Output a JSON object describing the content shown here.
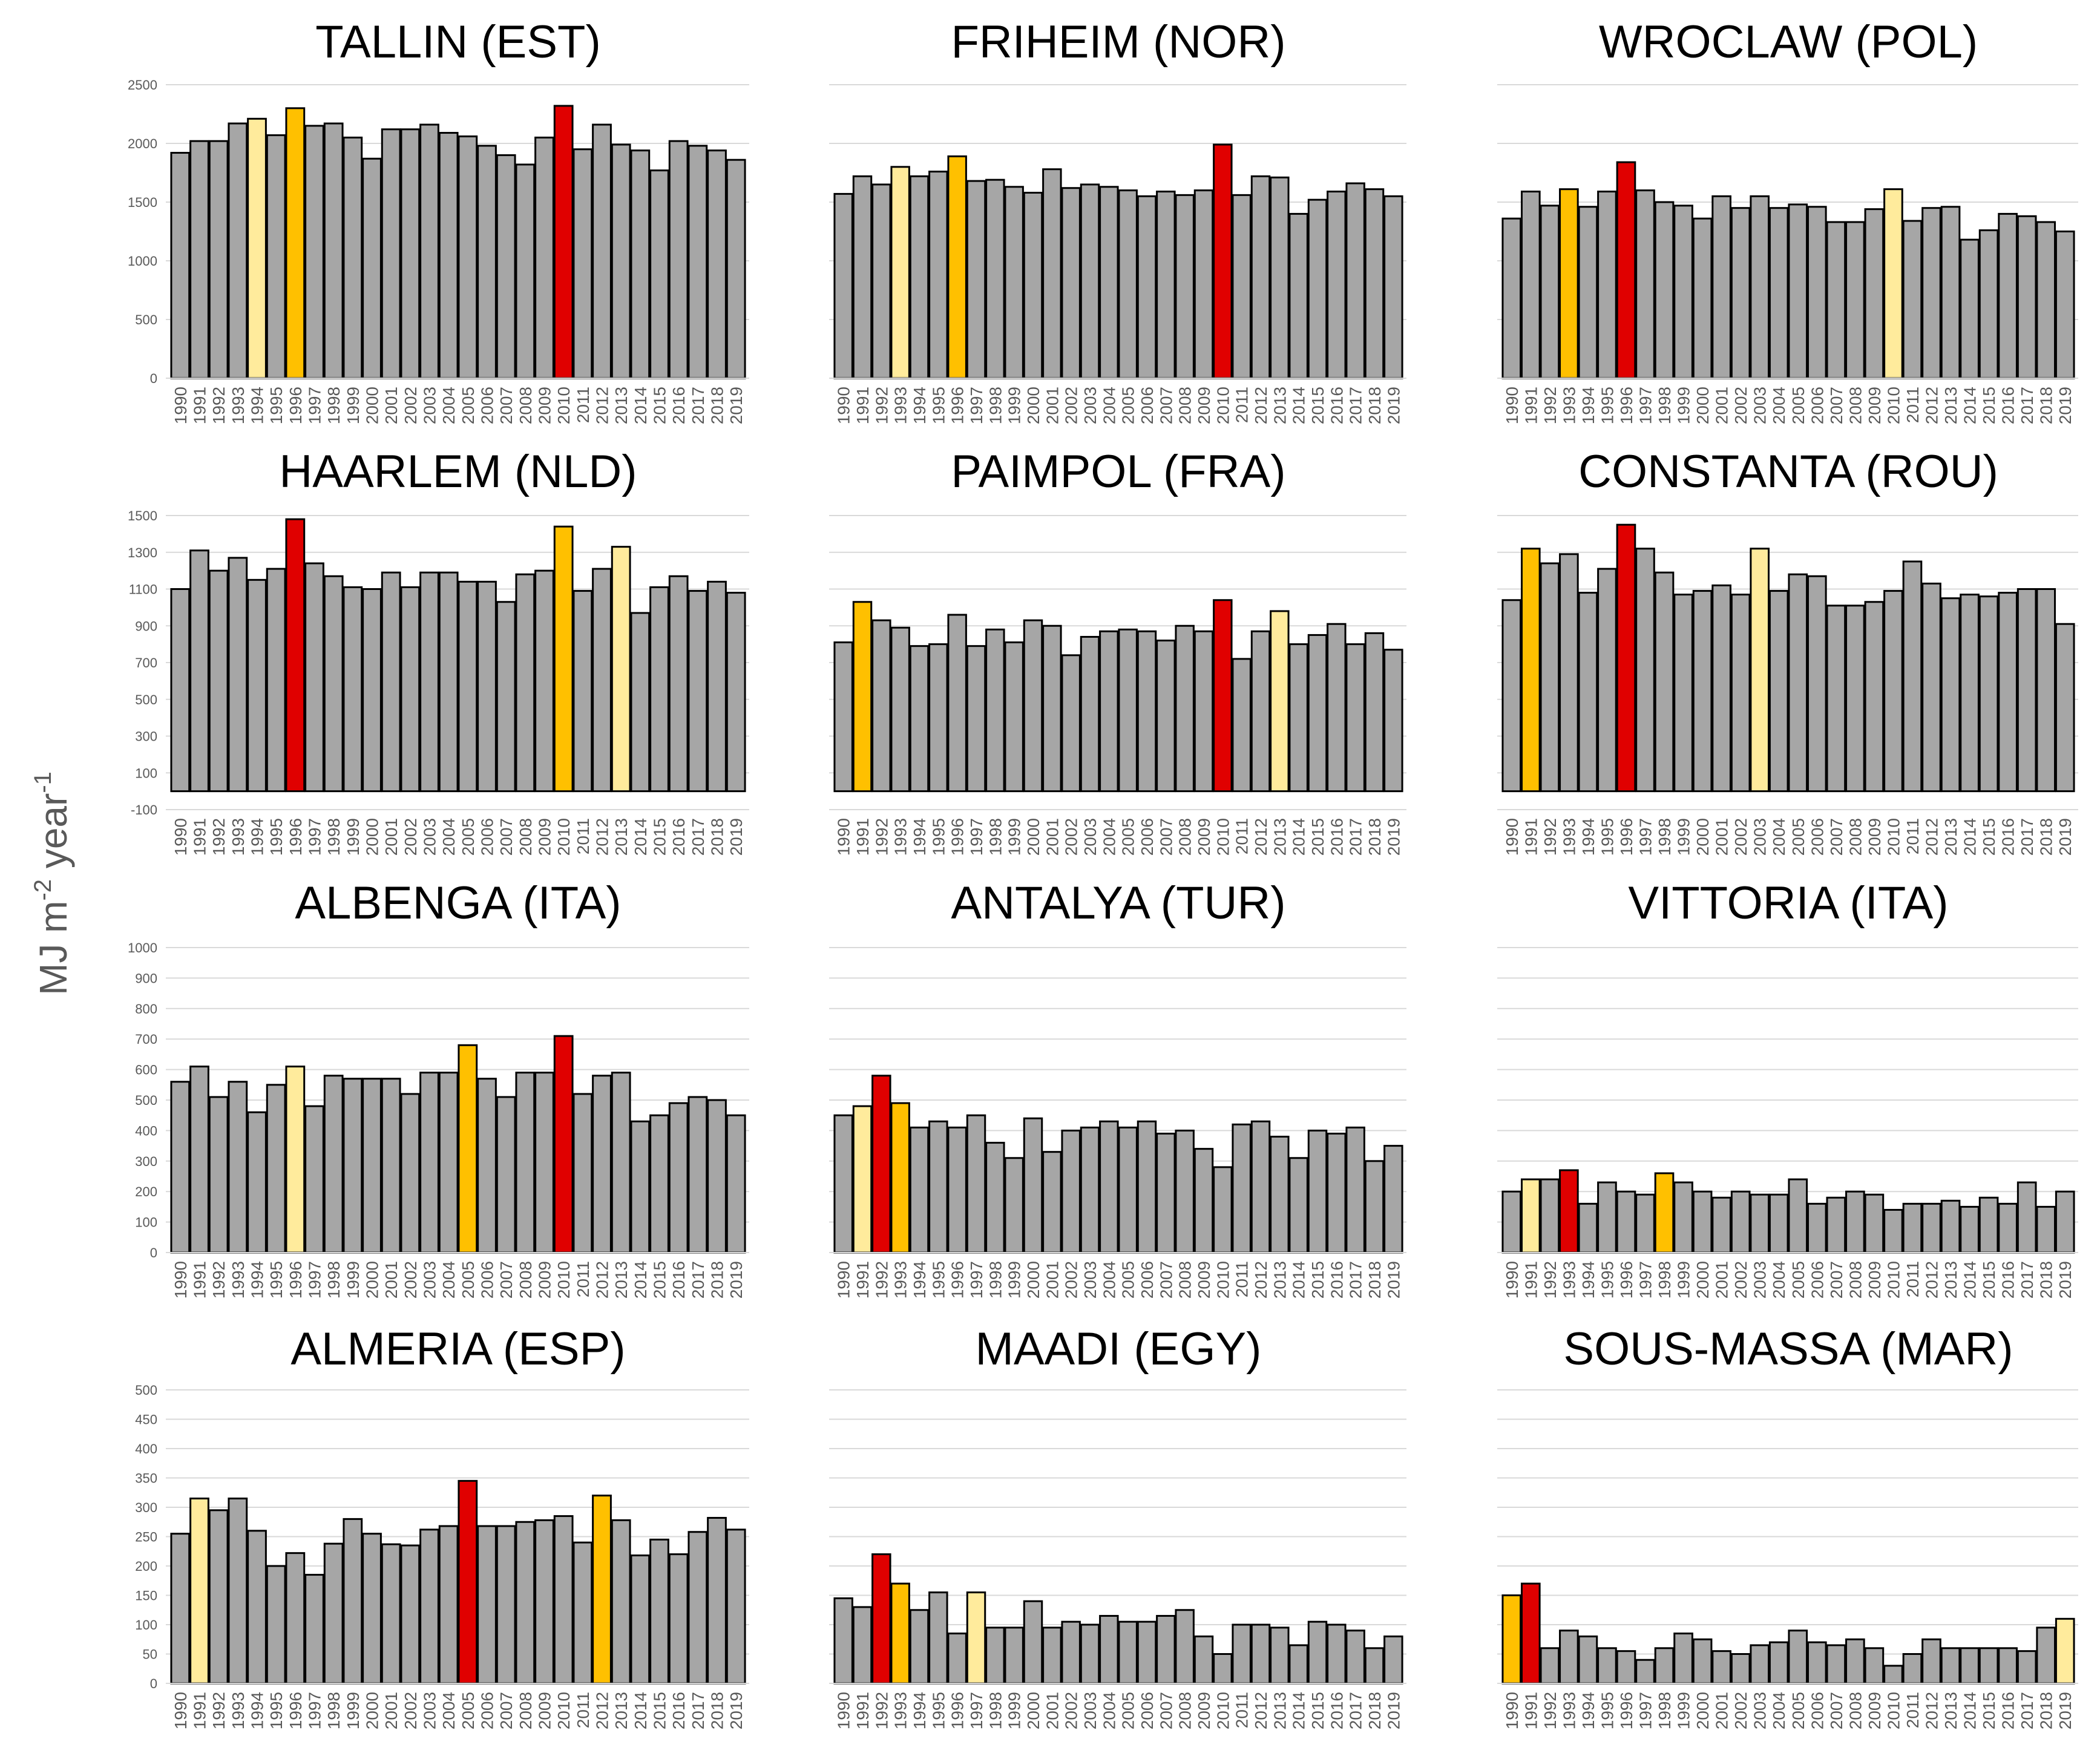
{
  "y_axis_title": "MJ m-2 year-1",
  "y_axis_title_parts": {
    "main": "MJ m",
    "exp1": "-2",
    "mid": " year",
    "exp2": "-1"
  },
  "colors": {
    "default": "#a6a6a6",
    "highest": "#e00000",
    "second": "#ffc000",
    "third": "#ffeb9c",
    "edge": "#000000",
    "grid": "#d9d9d9"
  },
  "chart_data": [
    {
      "type": "bar",
      "title": "TALLIN (EST)",
      "categories": [
        "1990",
        "1991",
        "1992",
        "1993",
        "1994",
        "1995",
        "1996",
        "1997",
        "1998",
        "1999",
        "2000",
        "2001",
        "2002",
        "2003",
        "2004",
        "2005",
        "2006",
        "2007",
        "2008",
        "2009",
        "2010",
        "2011",
        "2012",
        "2013",
        "2014",
        "2015",
        "2016",
        "2017",
        "2018",
        "2019"
      ],
      "values": [
        1920,
        2020,
        2020,
        2170,
        2210,
        2070,
        2300,
        2150,
        2170,
        2050,
        1870,
        2120,
        2120,
        2160,
        2090,
        2060,
        1980,
        1900,
        1820,
        2050,
        2320,
        1950,
        2160,
        1990,
        1940,
        1770,
        2020,
        1980,
        1940,
        1860
      ],
      "highlights": {
        "6": "second",
        "4": "third",
        "20": "highest"
      },
      "yticks": [
        "0",
        "500",
        "1000",
        "1500",
        "2000",
        "2500"
      ],
      "ylim": [
        0,
        2500
      ],
      "show_yticks": true
    },
    {
      "type": "bar",
      "title": "FRIHEIM (NOR)",
      "categories": [
        "1990",
        "1991",
        "1992",
        "1993",
        "1994",
        "1995",
        "1996",
        "1997",
        "1998",
        "1999",
        "2000",
        "2001",
        "2002",
        "2003",
        "2004",
        "2005",
        "2006",
        "2007",
        "2008",
        "2009",
        "2010",
        "2011",
        "2012",
        "2013",
        "2014",
        "2015",
        "2016",
        "2017",
        "2018",
        "2019"
      ],
      "values": [
        1570,
        1720,
        1650,
        1800,
        1720,
        1760,
        1890,
        1680,
        1690,
        1630,
        1580,
        1780,
        1620,
        1650,
        1630,
        1600,
        1550,
        1590,
        1560,
        1600,
        1990,
        1560,
        1720,
        1710,
        1400,
        1520,
        1590,
        1660,
        1610,
        1550
      ],
      "highlights": {
        "20": "highest",
        "6": "second",
        "3": "third"
      },
      "ylim": [
        0,
        2500
      ],
      "show_yticks": false
    },
    {
      "type": "bar",
      "title": "WROCLAW (POL)",
      "categories": [
        "1990",
        "1991",
        "1992",
        "1993",
        "1994",
        "1995",
        "1996",
        "1997",
        "1998",
        "1999",
        "2000",
        "2001",
        "2002",
        "2003",
        "2004",
        "2005",
        "2006",
        "2007",
        "2008",
        "2009",
        "2010",
        "2011",
        "2012",
        "2013",
        "2014",
        "2015",
        "2016",
        "2017",
        "2018",
        "2019"
      ],
      "values": [
        1360,
        1590,
        1470,
        1610,
        1460,
        1590,
        1840,
        1600,
        1500,
        1470,
        1360,
        1550,
        1450,
        1550,
        1450,
        1480,
        1460,
        1330,
        1330,
        1440,
        1610,
        1340,
        1450,
        1460,
        1180,
        1260,
        1400,
        1380,
        1330,
        1250
      ],
      "highlights": {
        "6": "highest",
        "3": "second",
        "20": "third"
      },
      "ylim": [
        0,
        2500
      ],
      "show_yticks": false
    },
    {
      "type": "bar",
      "title": "HAARLEM (NLD)",
      "categories": [
        "1990",
        "1991",
        "1992",
        "1993",
        "1994",
        "1995",
        "1996",
        "1997",
        "1998",
        "1999",
        "2000",
        "2001",
        "2002",
        "2003",
        "2004",
        "2005",
        "2006",
        "2007",
        "2008",
        "2009",
        "2010",
        "2011",
        "2012",
        "2013",
        "2014",
        "2015",
        "2016",
        "2017",
        "2018",
        "2019"
      ],
      "values": [
        1100,
        1310,
        1200,
        1270,
        1150,
        1210,
        1480,
        1240,
        1170,
        1110,
        1100,
        1190,
        1110,
        1190,
        1190,
        1140,
        1140,
        1030,
        1180,
        1200,
        1440,
        1090,
        1210,
        1330,
        970,
        1110,
        1170,
        1090,
        1140,
        1080
      ],
      "highlights": {
        "6": "highest",
        "20": "second",
        "23": "third"
      },
      "yticks": [
        "-100",
        "100",
        "300",
        "500",
        "700",
        "900",
        "1100",
        "1300",
        "1500"
      ],
      "ylim": [
        -100,
        1500
      ],
      "show_yticks": true
    },
    {
      "type": "bar",
      "title": "PAIMPOL (FRA)",
      "categories": [
        "1990",
        "1991",
        "1992",
        "1993",
        "1994",
        "1995",
        "1996",
        "1997",
        "1998",
        "1999",
        "2000",
        "2001",
        "2002",
        "2003",
        "2004",
        "2005",
        "2006",
        "2007",
        "2008",
        "2009",
        "2010",
        "2011",
        "2012",
        "2013",
        "2014",
        "2015",
        "2016",
        "2017",
        "2018",
        "2019"
      ],
      "values": [
        810,
        1030,
        930,
        890,
        790,
        800,
        960,
        790,
        880,
        810,
        930,
        900,
        740,
        840,
        870,
        880,
        870,
        820,
        900,
        870,
        1040,
        720,
        870,
        980,
        800,
        850,
        910,
        800,
        860,
        770
      ],
      "highlights": {
        "20": "highest",
        "1": "second",
        "23": "third"
      },
      "ylim": [
        -100,
        1500
      ],
      "show_yticks": false
    },
    {
      "type": "bar",
      "title": "CONSTANTA (ROU)",
      "categories": [
        "1990",
        "1991",
        "1992",
        "1993",
        "1994",
        "1995",
        "1996",
        "1997",
        "1998",
        "1999",
        "2000",
        "2001",
        "2002",
        "2003",
        "2004",
        "2005",
        "2006",
        "2007",
        "2008",
        "2009",
        "2010",
        "2011",
        "2012",
        "2013",
        "2014",
        "2015",
        "2016",
        "2017",
        "2018",
        "2019"
      ],
      "values": [
        1040,
        1320,
        1240,
        1290,
        1080,
        1210,
        1450,
        1320,
        1190,
        1070,
        1090,
        1120,
        1070,
        1320,
        1090,
        1180,
        1170,
        1010,
        1010,
        1030,
        1090,
        1250,
        1130,
        1050,
        1070,
        1060,
        1080,
        1100,
        1100,
        910
      ],
      "highlights": {
        "6": "highest",
        "1": "second",
        "13": "third"
      },
      "ylim": [
        -100,
        1500
      ],
      "show_yticks": false
    },
    {
      "type": "bar",
      "title": "ALBENGA (ITA)",
      "categories": [
        "1990",
        "1991",
        "1992",
        "1993",
        "1994",
        "1995",
        "1996",
        "1997",
        "1998",
        "1999",
        "2000",
        "2001",
        "2002",
        "2003",
        "2004",
        "2005",
        "2006",
        "2007",
        "2008",
        "2009",
        "2010",
        "2011",
        "2012",
        "2013",
        "2014",
        "2015",
        "2016",
        "2017",
        "2018",
        "2019"
      ],
      "values": [
        560,
        610,
        510,
        560,
        460,
        550,
        610,
        480,
        580,
        570,
        570,
        570,
        520,
        590,
        590,
        680,
        570,
        510,
        590,
        590,
        710,
        520,
        580,
        590,
        430,
        450,
        490,
        510,
        500,
        450
      ],
      "highlights": {
        "20": "highest",
        "15": "second",
        "6": "third"
      },
      "yticks": [
        "0",
        "100",
        "200",
        "300",
        "400",
        "500",
        "600",
        "700",
        "800",
        "900",
        "1000"
      ],
      "ylim": [
        0,
        1000
      ],
      "show_yticks": true
    },
    {
      "type": "bar",
      "title": "ANTALYA (TUR)",
      "categories": [
        "1990",
        "1991",
        "1992",
        "1993",
        "1994",
        "1995",
        "1996",
        "1997",
        "1998",
        "1999",
        "2000",
        "2001",
        "2002",
        "2003",
        "2004",
        "2005",
        "2006",
        "2007",
        "2008",
        "2009",
        "2010",
        "2011",
        "2012",
        "2013",
        "2014",
        "2015",
        "2016",
        "2017",
        "2018",
        "2019"
      ],
      "values": [
        450,
        480,
        580,
        490,
        410,
        430,
        410,
        450,
        360,
        310,
        440,
        330,
        400,
        410,
        430,
        410,
        430,
        390,
        400,
        340,
        280,
        420,
        430,
        380,
        310,
        400,
        390,
        410,
        300,
        350
      ],
      "highlights": {
        "2": "highest",
        "3": "second",
        "1": "third"
      },
      "ylim": [
        0,
        1000
      ],
      "show_yticks": false
    },
    {
      "type": "bar",
      "title": "VITTORIA (ITA)",
      "categories": [
        "1990",
        "1991",
        "1992",
        "1993",
        "1994",
        "1995",
        "1996",
        "1997",
        "1998",
        "1999",
        "2000",
        "2001",
        "2002",
        "2003",
        "2004",
        "2005",
        "2006",
        "2007",
        "2008",
        "2009",
        "2010",
        "2011",
        "2012",
        "2013",
        "2014",
        "2015",
        "2016",
        "2017",
        "2018",
        "2019"
      ],
      "values": [
        200,
        240,
        240,
        270,
        160,
        230,
        200,
        190,
        260,
        230,
        200,
        180,
        200,
        190,
        190,
        240,
        160,
        180,
        200,
        190,
        140,
        160,
        160,
        170,
        150,
        180,
        160,
        230,
        150,
        200
      ],
      "highlights": {
        "3": "highest",
        "8": "second",
        "1": "third"
      },
      "ylim": [
        0,
        1000
      ],
      "show_yticks": false
    },
    {
      "type": "bar",
      "title": "ALMERIA (ESP)",
      "categories": [
        "1990",
        "1991",
        "1992",
        "1993",
        "1994",
        "1995",
        "1996",
        "1997",
        "1998",
        "1999",
        "2000",
        "2001",
        "2002",
        "2003",
        "2004",
        "2005",
        "2006",
        "2007",
        "2008",
        "2009",
        "2010",
        "2011",
        "2012",
        "2013",
        "2014",
        "2015",
        "2016",
        "2017",
        "2018",
        "2019"
      ],
      "values": [
        255,
        315,
        295,
        315,
        260,
        200,
        222,
        185,
        238,
        280,
        255,
        237,
        235,
        262,
        268,
        345,
        268,
        268,
        275,
        278,
        285,
        240,
        320,
        278,
        218,
        245,
        220,
        258,
        282,
        262
      ],
      "highlights": {
        "15": "highest",
        "22": "second",
        "1": "third"
      },
      "yticks": [
        "0",
        "50",
        "100",
        "150",
        "200",
        "250",
        "300",
        "350",
        "400",
        "450",
        "500"
      ],
      "ylim": [
        0,
        500
      ],
      "show_yticks": true
    },
    {
      "type": "bar",
      "title": "MAADI (EGY)",
      "categories": [
        "1990",
        "1991",
        "1992",
        "1993",
        "1994",
        "1995",
        "1996",
        "1997",
        "1998",
        "1999",
        "2000",
        "2001",
        "2002",
        "2003",
        "2004",
        "2005",
        "2006",
        "2007",
        "2008",
        "2009",
        "2010",
        "2011",
        "2012",
        "2013",
        "2014",
        "2015",
        "2016",
        "2017",
        "2018",
        "2019"
      ],
      "values": [
        145,
        130,
        220,
        170,
        125,
        155,
        85,
        155,
        95,
        95,
        140,
        95,
        105,
        100,
        115,
        105,
        105,
        115,
        125,
        80,
        50,
        100,
        100,
        95,
        65,
        105,
        100,
        90,
        60,
        80
      ],
      "highlights": {
        "2": "highest",
        "3": "second",
        "7": "third"
      },
      "ylim": [
        0,
        500
      ],
      "show_yticks": false
    },
    {
      "type": "bar",
      "title": "SOUS-MASSA (MAR)",
      "categories": [
        "1990",
        "1991",
        "1992",
        "1993",
        "1994",
        "1995",
        "1996",
        "1997",
        "1998",
        "1999",
        "2000",
        "2001",
        "2002",
        "2003",
        "2004",
        "2005",
        "2006",
        "2007",
        "2008",
        "2009",
        "2010",
        "2011",
        "2012",
        "2013",
        "2014",
        "2015",
        "2016",
        "2017",
        "2018",
        "2019"
      ],
      "values": [
        150,
        170,
        60,
        90,
        80,
        60,
        55,
        40,
        60,
        85,
        75,
        55,
        50,
        65,
        70,
        90,
        70,
        65,
        75,
        60,
        30,
        50,
        75,
        60,
        60,
        60,
        60,
        55,
        95,
        110
      ],
      "highlights": {
        "1": "highest",
        "0": "second",
        "29": "third"
      },
      "ylim": [
        0,
        500
      ],
      "show_yticks": false
    }
  ]
}
